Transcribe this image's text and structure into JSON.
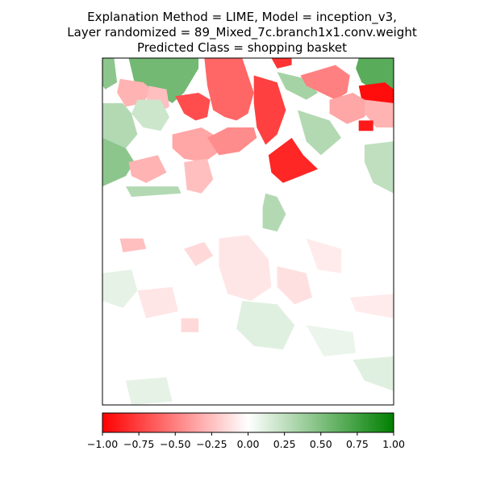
{
  "title_lines": [
    "Explanation Method = LIME, Model = inception_v3,",
    "Layer randomized = 89_Mixed_7c.branch1x1.conv.weight",
    "Predicted Class = shopping basket"
  ],
  "colors": {
    "negative": "#ff0000",
    "neutral": "#ffffff",
    "positive": "#008000",
    "axis": "#000000"
  },
  "chart_data": {
    "type": "heatmap",
    "title": "Explanation Method = LIME, Model = inception_v3, Layer randomized = 89_Mixed_7c.branch1x1.conv.weight, Predicted Class = shopping basket",
    "colorbar": {
      "vmin": -1.0,
      "vmax": 1.0,
      "ticks": [
        -1.0,
        -0.75,
        -0.5,
        -0.25,
        0.0,
        0.25,
        0.5,
        0.75,
        1.0
      ],
      "tick_labels": [
        "−1.00",
        "−0.75",
        "−0.50",
        "−0.25",
        "0.00",
        "0.25",
        "0.50",
        "0.75",
        "1.00"
      ],
      "colormap": [
        "#ff0000",
        "#ffffff",
        "#008000"
      ]
    },
    "heatmap_axes": {
      "xticks": [],
      "yticks": [],
      "grid": false
    },
    "segments": [
      {
        "value": 0.45,
        "points": [
          [
            0.0,
            0.0
          ],
          [
            0.04,
            0.0
          ],
          [
            0.05,
            0.07
          ],
          [
            0.01,
            0.09
          ],
          [
            0.0,
            0.08
          ]
        ]
      },
      {
        "value": 0.55,
        "points": [
          [
            0.09,
            0.0
          ],
          [
            0.33,
            0.0
          ],
          [
            0.33,
            0.03
          ],
          [
            0.28,
            0.1
          ],
          [
            0.24,
            0.13
          ],
          [
            0.18,
            0.1
          ],
          [
            0.11,
            0.07
          ]
        ]
      },
      {
        "value": -0.6,
        "points": [
          [
            0.35,
            0.0
          ],
          [
            0.48,
            0.0
          ],
          [
            0.52,
            0.1
          ],
          [
            0.5,
            0.16
          ],
          [
            0.46,
            0.18
          ],
          [
            0.42,
            0.17
          ],
          [
            0.38,
            0.15
          ],
          [
            0.36,
            0.08
          ]
        ]
      },
      {
        "value": -0.3,
        "points": [
          [
            0.06,
            0.06
          ],
          [
            0.14,
            0.07
          ],
          [
            0.17,
            0.09
          ],
          [
            0.14,
            0.13
          ],
          [
            0.08,
            0.14
          ],
          [
            0.05,
            0.1
          ]
        ]
      },
      {
        "value": -0.25,
        "points": [
          [
            0.16,
            0.08
          ],
          [
            0.22,
            0.09
          ],
          [
            0.23,
            0.14
          ],
          [
            0.19,
            0.16
          ],
          [
            0.15,
            0.13
          ]
        ]
      },
      {
        "value": -0.7,
        "points": [
          [
            0.25,
            0.11
          ],
          [
            0.33,
            0.1
          ],
          [
            0.37,
            0.12
          ],
          [
            0.36,
            0.17
          ],
          [
            0.32,
            0.18
          ],
          [
            0.28,
            0.16
          ]
        ]
      },
      {
        "value": 0.2,
        "points": [
          [
            0.12,
            0.12
          ],
          [
            0.2,
            0.12
          ],
          [
            0.23,
            0.17
          ],
          [
            0.2,
            0.21
          ],
          [
            0.14,
            0.2
          ],
          [
            0.1,
            0.16
          ]
        ]
      },
      {
        "value": -0.75,
        "points": [
          [
            0.52,
            0.05
          ],
          [
            0.6,
            0.07
          ],
          [
            0.63,
            0.15
          ],
          [
            0.6,
            0.22
          ],
          [
            0.56,
            0.25
          ],
          [
            0.53,
            0.2
          ],
          [
            0.52,
            0.13
          ]
        ]
      },
      {
        "value": -0.8,
        "points": [
          [
            0.58,
            0.0
          ],
          [
            0.65,
            0.0
          ],
          [
            0.65,
            0.02
          ],
          [
            0.6,
            0.03
          ]
        ]
      },
      {
        "value": 0.35,
        "points": [
          [
            0.6,
            0.04
          ],
          [
            0.7,
            0.06
          ],
          [
            0.74,
            0.1
          ],
          [
            0.7,
            0.12
          ],
          [
            0.63,
            0.09
          ]
        ]
      },
      {
        "value": -0.5,
        "points": [
          [
            0.68,
            0.05
          ],
          [
            0.8,
            0.02
          ],
          [
            0.85,
            0.05
          ],
          [
            0.84,
            0.1
          ],
          [
            0.8,
            0.12
          ],
          [
            0.75,
            0.1
          ],
          [
            0.7,
            0.08
          ]
        ]
      },
      {
        "value": 0.65,
        "points": [
          [
            0.88,
            0.0
          ],
          [
            1.0,
            0.0
          ],
          [
            1.0,
            0.09
          ],
          [
            0.95,
            0.1
          ],
          [
            0.89,
            0.07
          ],
          [
            0.87,
            0.03
          ]
        ]
      },
      {
        "value": -0.95,
        "points": [
          [
            0.88,
            0.08
          ],
          [
            0.97,
            0.07
          ],
          [
            1.0,
            0.09
          ],
          [
            1.0,
            0.14
          ],
          [
            0.94,
            0.14
          ],
          [
            0.89,
            0.12
          ]
        ]
      },
      {
        "value": -0.35,
        "points": [
          [
            0.78,
            0.12
          ],
          [
            0.86,
            0.1
          ],
          [
            0.92,
            0.13
          ],
          [
            0.9,
            0.17
          ],
          [
            0.84,
            0.19
          ],
          [
            0.78,
            0.16
          ]
        ]
      },
      {
        "value": -0.3,
        "points": [
          [
            0.9,
            0.12
          ],
          [
            1.0,
            0.13
          ],
          [
            1.0,
            0.2
          ],
          [
            0.94,
            0.2
          ],
          [
            0.9,
            0.16
          ]
        ]
      },
      {
        "value": -0.9,
        "points": [
          [
            0.88,
            0.18
          ],
          [
            0.93,
            0.18
          ],
          [
            0.93,
            0.21
          ],
          [
            0.88,
            0.21
          ]
        ]
      },
      {
        "value": 0.3,
        "points": [
          [
            0.0,
            0.13
          ],
          [
            0.07,
            0.13
          ],
          [
            0.1,
            0.16
          ],
          [
            0.12,
            0.22
          ],
          [
            0.08,
            0.26
          ],
          [
            0.0,
            0.24
          ]
        ]
      },
      {
        "value": 0.45,
        "points": [
          [
            0.0,
            0.23
          ],
          [
            0.08,
            0.26
          ],
          [
            0.11,
            0.3
          ],
          [
            0.08,
            0.34
          ],
          [
            0.0,
            0.37
          ]
        ]
      },
      {
        "value": -0.35,
        "points": [
          [
            0.24,
            0.22
          ],
          [
            0.34,
            0.2
          ],
          [
            0.4,
            0.23
          ],
          [
            0.4,
            0.27
          ],
          [
            0.35,
            0.3
          ],
          [
            0.28,
            0.29
          ],
          [
            0.24,
            0.26
          ]
        ]
      },
      {
        "value": -0.45,
        "points": [
          [
            0.36,
            0.23
          ],
          [
            0.43,
            0.2
          ],
          [
            0.52,
            0.2
          ],
          [
            0.53,
            0.23
          ],
          [
            0.47,
            0.27
          ],
          [
            0.4,
            0.28
          ]
        ]
      },
      {
        "value": -0.85,
        "points": [
          [
            0.57,
            0.28
          ],
          [
            0.65,
            0.23
          ],
          [
            0.69,
            0.28
          ],
          [
            0.74,
            0.32
          ],
          [
            0.68,
            0.34
          ],
          [
            0.62,
            0.36
          ],
          [
            0.58,
            0.33
          ]
        ]
      },
      {
        "value": 0.3,
        "points": [
          [
            0.67,
            0.15
          ],
          [
            0.78,
            0.18
          ],
          [
            0.82,
            0.23
          ],
          [
            0.75,
            0.28
          ],
          [
            0.7,
            0.24
          ]
        ]
      },
      {
        "value": 0.25,
        "points": [
          [
            0.9,
            0.25
          ],
          [
            1.0,
            0.24
          ],
          [
            1.0,
            0.39
          ],
          [
            0.93,
            0.36
          ],
          [
            0.9,
            0.3
          ]
        ]
      },
      {
        "value": -0.25,
        "points": [
          [
            0.28,
            0.3
          ],
          [
            0.36,
            0.29
          ],
          [
            0.38,
            0.35
          ],
          [
            0.34,
            0.39
          ],
          [
            0.29,
            0.38
          ]
        ]
      },
      {
        "value": -0.3,
        "points": [
          [
            0.09,
            0.3
          ],
          [
            0.19,
            0.28
          ],
          [
            0.22,
            0.33
          ],
          [
            0.15,
            0.36
          ],
          [
            0.1,
            0.34
          ]
        ]
      },
      {
        "value": 0.3,
        "points": [
          [
            0.08,
            0.37
          ],
          [
            0.26,
            0.37
          ],
          [
            0.27,
            0.39
          ],
          [
            0.1,
            0.4
          ]
        ]
      },
      {
        "value": 0.3,
        "points": [
          [
            0.56,
            0.39
          ],
          [
            0.6,
            0.4
          ],
          [
            0.63,
            0.45
          ],
          [
            0.6,
            0.5
          ],
          [
            0.55,
            0.49
          ],
          [
            0.55,
            0.43
          ]
        ]
      },
      {
        "value": -0.25,
        "points": [
          [
            0.06,
            0.52
          ],
          [
            0.14,
            0.52
          ],
          [
            0.15,
            0.55
          ],
          [
            0.07,
            0.56
          ]
        ]
      },
      {
        "value": -0.15,
        "points": [
          [
            0.28,
            0.55
          ],
          [
            0.35,
            0.53
          ],
          [
            0.38,
            0.57
          ],
          [
            0.32,
            0.6
          ]
        ]
      },
      {
        "value": -0.1,
        "points": [
          [
            0.4,
            0.52
          ],
          [
            0.5,
            0.51
          ],
          [
            0.57,
            0.58
          ],
          [
            0.58,
            0.66
          ],
          [
            0.51,
            0.7
          ],
          [
            0.43,
            0.68
          ],
          [
            0.4,
            0.6
          ]
        ]
      },
      {
        "value": -0.12,
        "points": [
          [
            0.6,
            0.6
          ],
          [
            0.7,
            0.62
          ],
          [
            0.72,
            0.69
          ],
          [
            0.66,
            0.71
          ],
          [
            0.6,
            0.66
          ]
        ]
      },
      {
        "value": -0.08,
        "points": [
          [
            0.7,
            0.52
          ],
          [
            0.82,
            0.55
          ],
          [
            0.82,
            0.62
          ],
          [
            0.74,
            0.61
          ]
        ]
      },
      {
        "value": 0.1,
        "points": [
          [
            0.0,
            0.62
          ],
          [
            0.1,
            0.61
          ],
          [
            0.12,
            0.67
          ],
          [
            0.07,
            0.72
          ],
          [
            0.0,
            0.7
          ]
        ]
      },
      {
        "value": -0.1,
        "points": [
          [
            0.12,
            0.67
          ],
          [
            0.24,
            0.66
          ],
          [
            0.26,
            0.73
          ],
          [
            0.15,
            0.75
          ]
        ]
      },
      {
        "value": -0.15,
        "points": [
          [
            0.27,
            0.75
          ],
          [
            0.33,
            0.75
          ],
          [
            0.33,
            0.79
          ],
          [
            0.27,
            0.79
          ]
        ]
      },
      {
        "value": 0.12,
        "points": [
          [
            0.48,
            0.7
          ],
          [
            0.6,
            0.71
          ],
          [
            0.66,
            0.77
          ],
          [
            0.62,
            0.84
          ],
          [
            0.52,
            0.83
          ],
          [
            0.46,
            0.78
          ]
        ]
      },
      {
        "value": 0.08,
        "points": [
          [
            0.7,
            0.77
          ],
          [
            0.86,
            0.79
          ],
          [
            0.87,
            0.85
          ],
          [
            0.76,
            0.86
          ]
        ]
      },
      {
        "value": 0.12,
        "points": [
          [
            0.86,
            0.87
          ],
          [
            1.0,
            0.86
          ],
          [
            1.0,
            0.96
          ],
          [
            0.9,
            0.93
          ]
        ]
      },
      {
        "value": -0.08,
        "points": [
          [
            0.85,
            0.69
          ],
          [
            1.0,
            0.68
          ],
          [
            1.0,
            0.75
          ],
          [
            0.87,
            0.73
          ]
        ]
      },
      {
        "value": 0.1,
        "points": [
          [
            0.08,
            0.93
          ],
          [
            0.22,
            0.92
          ],
          [
            0.24,
            0.99
          ],
          [
            0.1,
            1.0
          ]
        ]
      }
    ]
  }
}
